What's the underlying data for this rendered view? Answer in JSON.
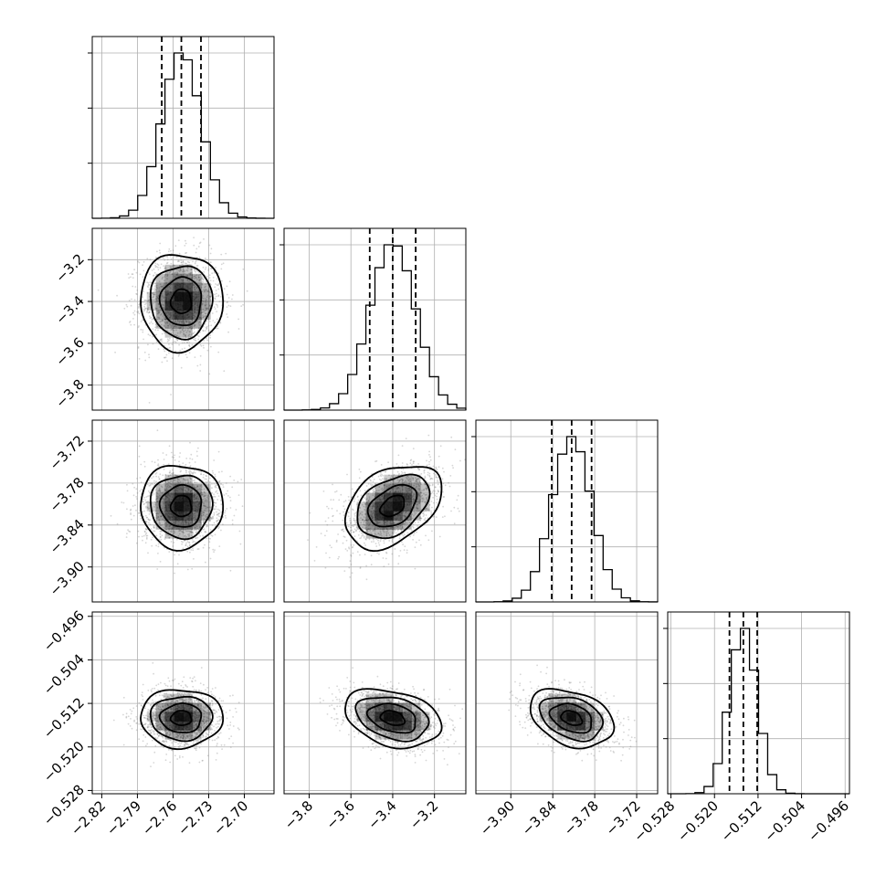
{
  "chart_data": {
    "type": "corner",
    "grid": true,
    "parameters": [
      {
        "range": [
          -2.828,
          -2.675
        ],
        "ticks": [
          -2.82,
          -2.79,
          -2.76,
          -2.73,
          -2.7
        ],
        "tick_labels": [
          "−2.82",
          "−2.79",
          "−2.76",
          "−2.73",
          "−2.70"
        ],
        "mean": -2.753,
        "sd": 0.0165,
        "quantiles": [
          -2.7695,
          -2.753,
          -2.7365
        ]
      },
      {
        "range": [
          -3.92,
          -3.05
        ],
        "ticks": [
          -3.8,
          -3.6,
          -3.4,
          -3.2
        ],
        "tick_labels": [
          "−3.8",
          "−3.6",
          "−3.4",
          "−3.2"
        ],
        "mean": -3.4,
        "sd": 0.11,
        "quantiles": [
          -3.51,
          -3.4,
          -3.29
        ]
      },
      {
        "range": [
          -3.95,
          -3.69
        ],
        "ticks": [
          -3.9,
          -3.84,
          -3.78,
          -3.72
        ],
        "tick_labels": [
          "−3.90",
          "−3.84",
          "−3.78",
          "−3.72"
        ],
        "mean": -3.813,
        "sd": 0.0285,
        "quantiles": [
          -3.8415,
          -3.813,
          -3.7845
        ]
      },
      {
        "range": [
          -0.5286,
          -0.4952
        ],
        "ticks": [
          -0.528,
          -0.52,
          -0.512,
          -0.504,
          -0.496
        ],
        "tick_labels": [
          "−0.528",
          "−0.520",
          "−0.512",
          "−0.504",
          "−0.496"
        ],
        "mean": -0.5147,
        "sd": 0.00255,
        "quantiles": [
          -0.51725,
          -0.5147,
          -0.51215
        ]
      }
    ],
    "correlations": [
      {
        "pair": [
          0,
          1
        ],
        "rho": 0.0
      },
      {
        "pair": [
          0,
          2
        ],
        "rho": 0.0
      },
      {
        "pair": [
          1,
          2
        ],
        "rho": 0.38
      },
      {
        "pair": [
          0,
          3
        ],
        "rho": 0.0
      },
      {
        "pair": [
          1,
          3
        ],
        "rho": -0.3
      },
      {
        "pair": [
          2,
          3
        ],
        "rho": -0.32
      }
    ],
    "histogram_bins": 20,
    "contour_levels_sigma": [
      0.5,
      1.0,
      1.5,
      2.0
    ],
    "colors": {
      "contour": "#000000",
      "points": "#7f7f7f",
      "density": "#000000",
      "grid": "#b0b0b0"
    }
  }
}
